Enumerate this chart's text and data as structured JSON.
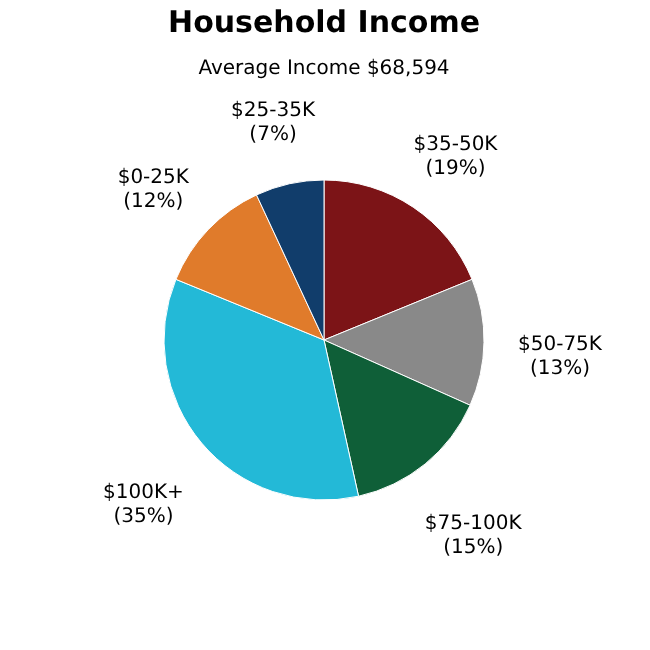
{
  "chart_data": {
    "type": "pie",
    "title": "Household Income",
    "subtitle": "Average Income  $68,594",
    "categories": [
      "$35-50K",
      "$50-75K",
      "$75-100K",
      "$100K+",
      "$0-25K",
      "$25-35K"
    ],
    "values": [
      19,
      13,
      15,
      35,
      12,
      7
    ],
    "value_labels": [
      "(19%)",
      "(13%)",
      "(15%)",
      "(35%)",
      "(12%)",
      "(7%)"
    ],
    "colors": [
      "#7c1417",
      "#898989",
      "#0f5f38",
      "#23b9d7",
      "#e07b2b",
      "#113d6b"
    ],
    "legend": false
  }
}
